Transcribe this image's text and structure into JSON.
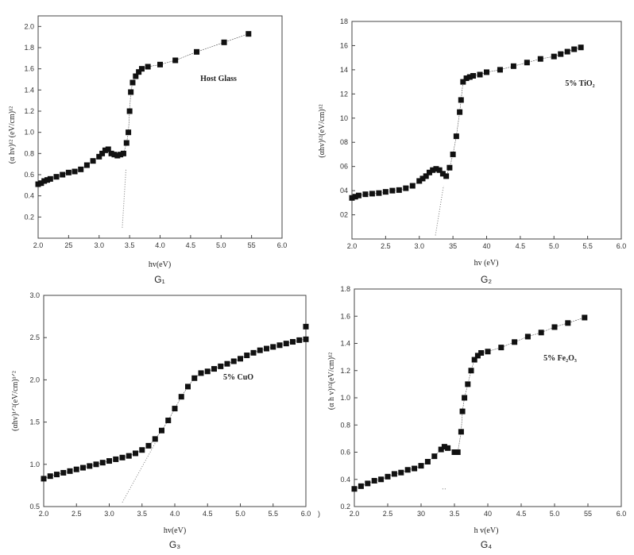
{
  "chart_data": [
    {
      "type": "scatter",
      "annotation": "Host Glass",
      "caption": "G₁",
      "xlabel": "hv(eV)",
      "ylabel": "(α hv)¹² (eV/cm)¹²",
      "xlim": [
        2.0,
        6.0
      ],
      "ylim": [
        0.0,
        2.1
      ],
      "xticks": [
        "2.0",
        "25",
        "3.0",
        "3.5",
        "4.0",
        "4.5",
        "5.0",
        "55",
        "6.0"
      ],
      "yticks": [
        "0.2",
        "0.4",
        "0.6",
        "0.8",
        "1.0",
        "1.2",
        "1.4",
        "1.6",
        "1.8",
        "2.0"
      ],
      "series": [
        {
          "x": [
            2.0,
            2.05,
            2.1,
            2.15,
            2.2,
            2.3,
            2.4,
            2.5,
            2.6,
            2.7,
            2.8,
            2.9,
            3.0,
            3.05,
            3.1,
            3.15,
            3.2,
            3.25,
            3.3,
            3.35,
            3.4,
            3.45,
            3.48,
            3.5,
            3.52,
            3.55,
            3.6,
            3.65,
            3.7,
            3.8,
            4.0,
            4.25,
            4.6,
            5.05,
            5.45
          ],
          "y": [
            0.51,
            0.52,
            0.54,
            0.55,
            0.56,
            0.58,
            0.6,
            0.62,
            0.63,
            0.65,
            0.69,
            0.73,
            0.77,
            0.8,
            0.83,
            0.84,
            0.8,
            0.79,
            0.78,
            0.79,
            0.8,
            0.9,
            1.0,
            1.2,
            1.38,
            1.47,
            1.53,
            1.57,
            1.6,
            1.62,
            1.64,
            1.68,
            1.76,
            1.85,
            1.93
          ]
        }
      ],
      "extrapolation": {
        "x": [
          3.38,
          3.44
        ],
        "y": [
          0.1,
          0.65
        ]
      }
    },
    {
      "type": "scatter",
      "annotation": "5% TiO₂",
      "caption": "G₂",
      "xlabel": "hv (eV)",
      "ylabel": "(αhv)¹²(eV/cm)¹²",
      "xlim": [
        2.0,
        6.0
      ],
      "ylim": [
        0,
        18
      ],
      "xticks": [
        "2.0",
        "2.5",
        "3.0",
        "35",
        "40",
        "4.5",
        "5.0",
        "5.5",
        "6.0"
      ],
      "yticks": [
        "02",
        "04",
        "06",
        "08",
        "10",
        "12",
        "14",
        "16",
        "18"
      ],
      "series": [
        {
          "x": [
            2.0,
            2.05,
            2.1,
            2.2,
            2.3,
            2.4,
            2.5,
            2.6,
            2.7,
            2.8,
            2.9,
            3.0,
            3.05,
            3.1,
            3.15,
            3.2,
            3.25,
            3.3,
            3.35,
            3.4,
            3.45,
            3.5,
            3.55,
            3.6,
            3.62,
            3.65,
            3.7,
            3.75,
            3.8,
            3.9,
            4.0,
            4.2,
            4.4,
            4.6,
            4.8,
            5.0,
            5.1,
            5.2,
            5.3,
            5.4
          ],
          "y": [
            3.4,
            3.5,
            3.6,
            3.7,
            3.75,
            3.8,
            3.9,
            4.0,
            4.05,
            4.2,
            4.4,
            4.8,
            5.0,
            5.2,
            5.5,
            5.7,
            5.8,
            5.7,
            5.4,
            5.2,
            5.9,
            7.0,
            8.5,
            10.5,
            11.5,
            13.0,
            13.3,
            13.4,
            13.5,
            13.6,
            13.8,
            14.0,
            14.3,
            14.6,
            14.9,
            15.1,
            15.3,
            15.5,
            15.7,
            15.85
          ]
        }
      ],
      "extrapolation": {
        "x": [
          3.24,
          3.36
        ],
        "y": [
          0.3,
          4.4
        ]
      }
    },
    {
      "type": "scatter",
      "annotation": "5% CuO",
      "caption": "G₃",
      "xlabel": "hv(eV)",
      "ylabel": "(αhv)¹ᐟ²(eV/cm)¹ᐟ²",
      "xlim": [
        2.0,
        6.0
      ],
      "ylim": [
        0.5,
        3.0
      ],
      "xticks": [
        "2.0",
        "2.5",
        "3.0",
        "3.5",
        "4.0",
        "4.5",
        "5.0",
        "5.5",
        "6.0"
      ],
      "yticks": [
        "0.5",
        "1.0",
        "1.5",
        "2.0",
        "2.5",
        "3.0"
      ],
      "series": [
        {
          "x": [
            2.0,
            2.1,
            2.2,
            2.3,
            2.4,
            2.5,
            2.6,
            2.7,
            2.8,
            2.9,
            3.0,
            3.1,
            3.2,
            3.3,
            3.4,
            3.5,
            3.6,
            3.7,
            3.8,
            3.9,
            4.0,
            4.1,
            4.2,
            4.3,
            4.4,
            4.5,
            4.6,
            4.7,
            4.8,
            4.9,
            5.0,
            5.1,
            5.2,
            5.3,
            5.4,
            5.5,
            5.6,
            5.7,
            5.8,
            5.9,
            6.0,
            6.0
          ],
          "y": [
            0.83,
            0.86,
            0.88,
            0.9,
            0.92,
            0.94,
            0.96,
            0.98,
            1.0,
            1.02,
            1.04,
            1.06,
            1.08,
            1.1,
            1.13,
            1.17,
            1.22,
            1.3,
            1.4,
            1.52,
            1.66,
            1.8,
            1.92,
            2.02,
            2.08,
            2.1,
            2.13,
            2.16,
            2.19,
            2.22,
            2.25,
            2.29,
            2.32,
            2.35,
            2.37,
            2.39,
            2.41,
            2.43,
            2.45,
            2.47,
            2.48,
            2.63
          ]
        }
      ],
      "extrapolation": {
        "x": [
          3.2,
          3.7
        ],
        "y": [
          0.55,
          1.25
        ]
      }
    },
    {
      "type": "scatter",
      "annotation": "5% Fe₂O₃",
      "caption": "G₄",
      "xlabel": "h v(eV)",
      "ylabel": "(α h v)¹²(eV/cm)¹²",
      "xlim": [
        2.0,
        6.0
      ],
      "ylim": [
        0.2,
        1.8
      ],
      "xticks": [
        "2.0",
        "2.5",
        "30",
        "3.5",
        "40",
        "4.5",
        "5.0",
        "55",
        "6.0"
      ],
      "yticks": [
        "0.2",
        "0.4",
        "0.6",
        "0.8",
        "1.0",
        "1.2",
        "1.4",
        "1.6",
        "1.8"
      ],
      "series": [
        {
          "x": [
            2.0,
            2.1,
            2.2,
            2.3,
            2.4,
            2.5,
            2.6,
            2.7,
            2.8,
            2.9,
            3.0,
            3.1,
            3.2,
            3.3,
            3.35,
            3.4,
            3.5,
            3.55,
            3.6,
            3.62,
            3.65,
            3.7,
            3.75,
            3.8,
            3.85,
            3.9,
            4.0,
            4.2,
            4.4,
            4.6,
            4.8,
            5.0,
            5.2,
            5.45
          ],
          "y": [
            0.33,
            0.35,
            0.37,
            0.39,
            0.4,
            0.42,
            0.44,
            0.45,
            0.47,
            0.48,
            0.5,
            0.53,
            0.57,
            0.62,
            0.64,
            0.63,
            0.6,
            0.6,
            0.75,
            0.9,
            1.0,
            1.1,
            1.2,
            1.28,
            1.31,
            1.33,
            1.34,
            1.37,
            1.41,
            1.45,
            1.48,
            1.52,
            1.55,
            1.59
          ]
        }
      ],
      "extrapolation": {
        "x": [
          3.32,
          3.38
        ],
        "y": [
          0.33,
          0.33
        ]
      }
    }
  ],
  "stray_mark": ")",
  "colors": {
    "marker": "#111111",
    "axis": "#444444",
    "extrap": "#777777"
  }
}
